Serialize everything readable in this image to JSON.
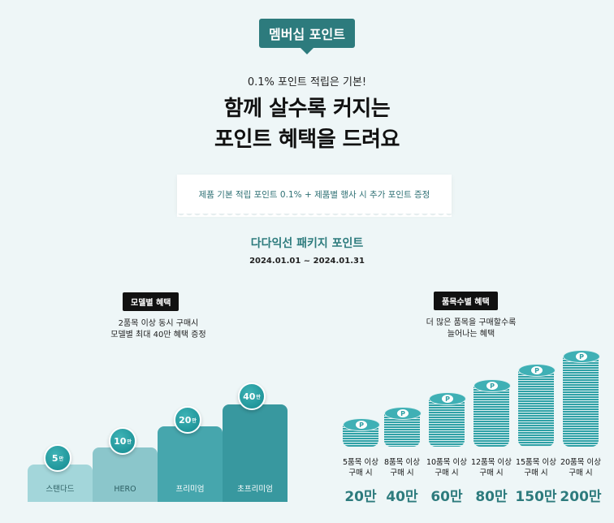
{
  "badge": "멤버십 포인트",
  "subline": "0.1% 포인트 적립은 기본!",
  "headline": [
    "함께 살수록 커지는",
    "포인트 혜택을 드려요"
  ],
  "note": "제품 기본 적립 포인트 0.1% + 제품별 행사 시 추가 포인트 증정",
  "event": {
    "title": "다다익선 패키지 포인트",
    "date": "2024.01.01 ~ 2024.01.31"
  },
  "model_benefit": {
    "tag": "모델별 혜택",
    "desc": [
      "2품목 이상 동시 구매시",
      "모델별 최대 40만 혜택 증정"
    ],
    "tiers": [
      {
        "label": "스탠다드",
        "amount": "5",
        "unit": "만"
      },
      {
        "label": "HERO",
        "amount": "10",
        "unit": "만"
      },
      {
        "label": "프리미엄",
        "amount": "20",
        "unit": "만"
      },
      {
        "label": "초프리미엄",
        "amount": "40",
        "unit": "만"
      }
    ]
  },
  "quantity_benefit": {
    "tag": "품목수별 혜택",
    "desc": [
      "더 많은 품목을 구매할수록",
      "늘어나는 혜택"
    ],
    "coin_mark": "P",
    "tiers": [
      {
        "qty": "5품목 이상",
        "suffix": "구매 시",
        "points": "20만"
      },
      {
        "qty": "8품목 이상",
        "suffix": "구매 시",
        "points": "40만"
      },
      {
        "qty": "10품목 이상",
        "suffix": "구매 시",
        "points": "60만"
      },
      {
        "qty": "12품목 이상",
        "suffix": "구매 시",
        "points": "80만"
      },
      {
        "qty": "15품목 이상",
        "suffix": "구매 시",
        "points": "150만"
      },
      {
        "qty": "20품목 이상",
        "suffix": "구매 시",
        "points": "200만"
      }
    ]
  },
  "colors": {
    "accent": "#2d7b7d",
    "coin": "#2fa1a6",
    "background": "#eef6f7"
  }
}
